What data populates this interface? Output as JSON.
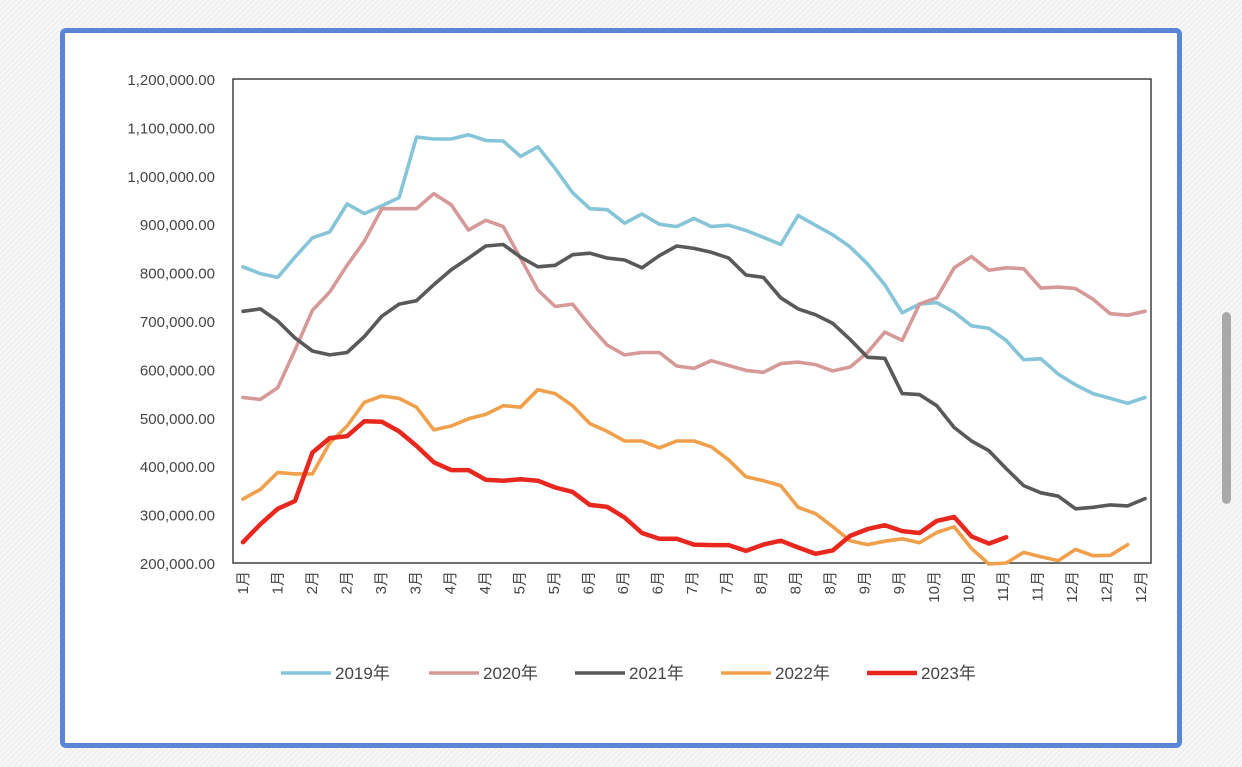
{
  "chart_data": {
    "type": "line",
    "title": "",
    "xlabel": "",
    "ylabel": "",
    "ylim": [
      200000,
      1200000
    ],
    "yticks": [
      "1,200,000.00",
      "1,100,000.00",
      "1,000,000.00",
      "900,000.00",
      "800,000.00",
      "700,000.00",
      "600,000.00",
      "500,000.00",
      "400,000.00",
      "300,000.00",
      "200,000.00"
    ],
    "xtick_labels": [
      "1月",
      "1月",
      "2月",
      "2月",
      "3月",
      "3月",
      "4月",
      "4月",
      "5月",
      "5月",
      "6月",
      "6月",
      "6月",
      "7月",
      "7月",
      "8月",
      "8月",
      "8月",
      "9月",
      "9月",
      "10月",
      "10月",
      "11月",
      "11月",
      "12月",
      "12月",
      "12月"
    ],
    "legend_position": "bottom",
    "series": [
      {
        "name": "2019年",
        "color": "#86c5d8",
        "values": [
          812000,
          798000,
          790000,
          832000,
          872000,
          884000,
          942000,
          922000,
          938000,
          955000,
          1080000,
          1076000,
          1076000,
          1085000,
          1073000,
          1072000,
          1040000,
          1060000,
          1015000,
          965000,
          932000,
          930000,
          902000,
          921000,
          900000,
          895000,
          912000,
          895000,
          898000,
          887000,
          873000,
          858000,
          918000,
          898000,
          878000,
          853000,
          818000,
          775000,
          717000,
          735000,
          738000,
          718000,
          690000,
          685000,
          660000,
          620000,
          622000,
          590000,
          568000,
          550000,
          540000,
          530000,
          542000
        ]
      },
      {
        "name": "2020年",
        "color": "#d59a98",
        "values": [
          542000,
          538000,
          562000,
          640000,
          722000,
          760000,
          815000,
          865000,
          932000,
          932000,
          932000,
          963000,
          940000,
          888000,
          908000,
          895000,
          830000,
          764000,
          730000,
          735000,
          690000,
          650000,
          630000,
          635000,
          635000,
          607000,
          602000,
          618000,
          608000,
          598000,
          594000,
          612000,
          615000,
          610000,
          597000,
          605000,
          635000,
          677000,
          660000,
          735000,
          748000,
          810000,
          833000,
          805000,
          810000,
          808000,
          768000,
          770000,
          767000,
          745000,
          715000,
          712000,
          720000
        ]
      },
      {
        "name": "2021年",
        "color": "#595959",
        "values": [
          720000,
          725000,
          700000,
          665000,
          638000,
          630000,
          635000,
          668000,
          710000,
          735000,
          742000,
          775000,
          806000,
          830000,
          855000,
          858000,
          832000,
          812000,
          815000,
          837000,
          840000,
          830000,
          826000,
          810000,
          835000,
          855000,
          850000,
          842000,
          830000,
          795000,
          790000,
          748000,
          725000,
          713000,
          695000,
          662000,
          625000,
          623000,
          550000,
          548000,
          525000,
          480000,
          452000,
          432000,
          395000,
          360000,
          345000,
          338000,
          312000,
          315000,
          320000,
          318000,
          333000
        ]
      },
      {
        "name": "2022年",
        "color": "#f0a04b",
        "values": [
          332000,
          352000,
          387000,
          384000,
          384000,
          448000,
          483000,
          532000,
          545000,
          540000,
          522000,
          475000,
          483000,
          498000,
          507000,
          525000,
          522000,
          558000,
          550000,
          525000,
          488000,
          472000,
          452000,
          452000,
          438000,
          452000,
          452000,
          440000,
          413000,
          378000,
          370000,
          360000,
          315000,
          302000,
          275000,
          246000,
          238000,
          245000,
          250000,
          242000,
          263000,
          275000,
          230000,
          198000,
          200000,
          222000,
          213000,
          205000,
          228000,
          215000,
          216000,
          238000
        ]
      },
      {
        "name": "2023年",
        "color": "#e8281e",
        "values": [
          243000,
          280000,
          312000,
          328000,
          428000,
          458000,
          462000,
          493000,
          492000,
          472000,
          442000,
          408000,
          392000,
          392000,
          372000,
          370000,
          373000,
          370000,
          356000,
          347000,
          320000,
          316000,
          294000,
          262000,
          250000,
          250000,
          238000,
          237000,
          237000,
          225000,
          238000,
          246000,
          232000,
          219000,
          226000,
          256000,
          270000,
          278000,
          266000,
          262000,
          287000,
          295000,
          255000,
          240000,
          253000
        ]
      }
    ]
  }
}
